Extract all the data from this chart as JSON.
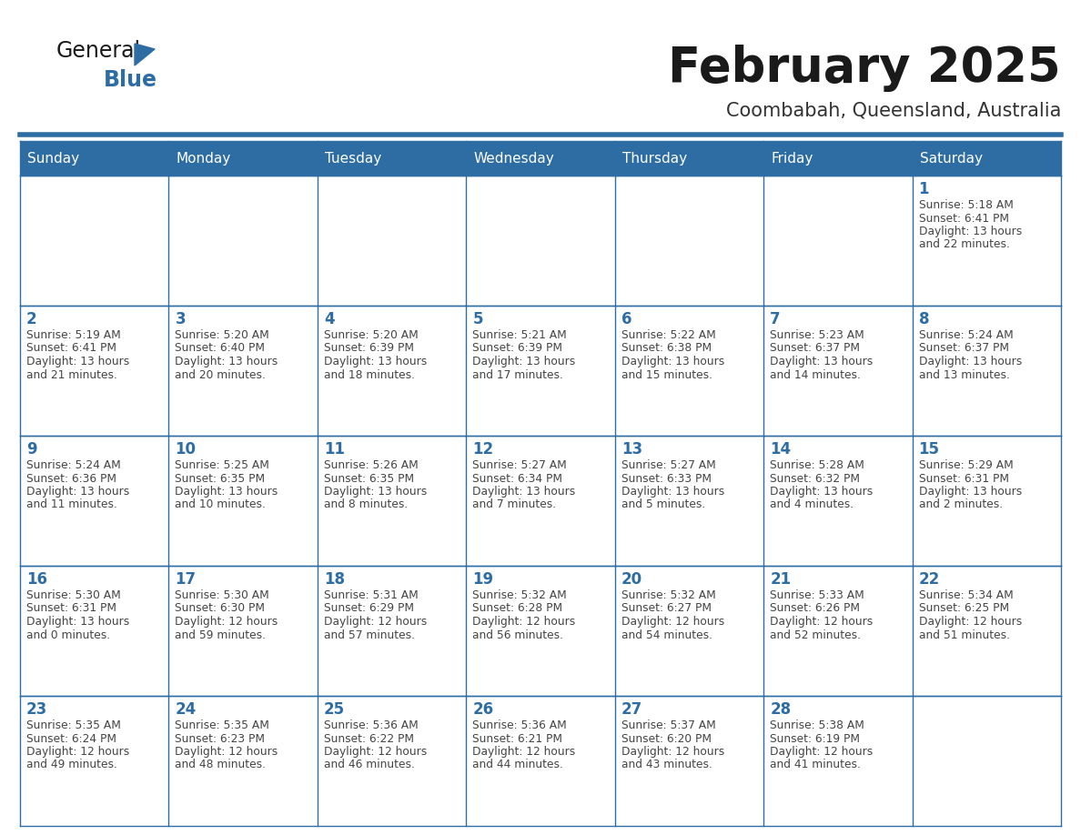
{
  "title": "February 2025",
  "subtitle": "Coombabah, Queensland, Australia",
  "days_of_week": [
    "Sunday",
    "Monday",
    "Tuesday",
    "Wednesday",
    "Thursday",
    "Friday",
    "Saturday"
  ],
  "header_bg": "#2E6DA4",
  "header_text_color": "#FFFFFF",
  "cell_bg": "#FFFFFF",
  "line_color": "#2E6DA4",
  "title_color": "#1a1a1a",
  "subtitle_color": "#333333",
  "day_number_color": "#2E6DA4",
  "detail_color": "#444444",
  "logo_general_color": "#1a1a1a",
  "logo_blue_color": "#2E6DA4",
  "weeks": [
    [
      null,
      null,
      null,
      null,
      null,
      null,
      1
    ],
    [
      2,
      3,
      4,
      5,
      6,
      7,
      8
    ],
    [
      9,
      10,
      11,
      12,
      13,
      14,
      15
    ],
    [
      16,
      17,
      18,
      19,
      20,
      21,
      22
    ],
    [
      23,
      24,
      25,
      26,
      27,
      28,
      null
    ]
  ],
  "cell_data": {
    "1": {
      "sunrise": "5:18 AM",
      "sunset": "6:41 PM",
      "daylight_h": "13 hours",
      "daylight_m": "and 22 minutes."
    },
    "2": {
      "sunrise": "5:19 AM",
      "sunset": "6:41 PM",
      "daylight_h": "13 hours",
      "daylight_m": "and 21 minutes."
    },
    "3": {
      "sunrise": "5:20 AM",
      "sunset": "6:40 PM",
      "daylight_h": "13 hours",
      "daylight_m": "and 20 minutes."
    },
    "4": {
      "sunrise": "5:20 AM",
      "sunset": "6:39 PM",
      "daylight_h": "13 hours",
      "daylight_m": "and 18 minutes."
    },
    "5": {
      "sunrise": "5:21 AM",
      "sunset": "6:39 PM",
      "daylight_h": "13 hours",
      "daylight_m": "and 17 minutes."
    },
    "6": {
      "sunrise": "5:22 AM",
      "sunset": "6:38 PM",
      "daylight_h": "13 hours",
      "daylight_m": "and 15 minutes."
    },
    "7": {
      "sunrise": "5:23 AM",
      "sunset": "6:37 PM",
      "daylight_h": "13 hours",
      "daylight_m": "and 14 minutes."
    },
    "8": {
      "sunrise": "5:24 AM",
      "sunset": "6:37 PM",
      "daylight_h": "13 hours",
      "daylight_m": "and 13 minutes."
    },
    "9": {
      "sunrise": "5:24 AM",
      "sunset": "6:36 PM",
      "daylight_h": "13 hours",
      "daylight_m": "and 11 minutes."
    },
    "10": {
      "sunrise": "5:25 AM",
      "sunset": "6:35 PM",
      "daylight_h": "13 hours",
      "daylight_m": "and 10 minutes."
    },
    "11": {
      "sunrise": "5:26 AM",
      "sunset": "6:35 PM",
      "daylight_h": "13 hours",
      "daylight_m": "and 8 minutes."
    },
    "12": {
      "sunrise": "5:27 AM",
      "sunset": "6:34 PM",
      "daylight_h": "13 hours",
      "daylight_m": "and 7 minutes."
    },
    "13": {
      "sunrise": "5:27 AM",
      "sunset": "6:33 PM",
      "daylight_h": "13 hours",
      "daylight_m": "and 5 minutes."
    },
    "14": {
      "sunrise": "5:28 AM",
      "sunset": "6:32 PM",
      "daylight_h": "13 hours",
      "daylight_m": "and 4 minutes."
    },
    "15": {
      "sunrise": "5:29 AM",
      "sunset": "6:31 PM",
      "daylight_h": "13 hours",
      "daylight_m": "and 2 minutes."
    },
    "16": {
      "sunrise": "5:30 AM",
      "sunset": "6:31 PM",
      "daylight_h": "13 hours",
      "daylight_m": "and 0 minutes."
    },
    "17": {
      "sunrise": "5:30 AM",
      "sunset": "6:30 PM",
      "daylight_h": "12 hours",
      "daylight_m": "and 59 minutes."
    },
    "18": {
      "sunrise": "5:31 AM",
      "sunset": "6:29 PM",
      "daylight_h": "12 hours",
      "daylight_m": "and 57 minutes."
    },
    "19": {
      "sunrise": "5:32 AM",
      "sunset": "6:28 PM",
      "daylight_h": "12 hours",
      "daylight_m": "and 56 minutes."
    },
    "20": {
      "sunrise": "5:32 AM",
      "sunset": "6:27 PM",
      "daylight_h": "12 hours",
      "daylight_m": "and 54 minutes."
    },
    "21": {
      "sunrise": "5:33 AM",
      "sunset": "6:26 PM",
      "daylight_h": "12 hours",
      "daylight_m": "and 52 minutes."
    },
    "22": {
      "sunrise": "5:34 AM",
      "sunset": "6:25 PM",
      "daylight_h": "12 hours",
      "daylight_m": "and 51 minutes."
    },
    "23": {
      "sunrise": "5:35 AM",
      "sunset": "6:24 PM",
      "daylight_h": "12 hours",
      "daylight_m": "and 49 minutes."
    },
    "24": {
      "sunrise": "5:35 AM",
      "sunset": "6:23 PM",
      "daylight_h": "12 hours",
      "daylight_m": "and 48 minutes."
    },
    "25": {
      "sunrise": "5:36 AM",
      "sunset": "6:22 PM",
      "daylight_h": "12 hours",
      "daylight_m": "and 46 minutes."
    },
    "26": {
      "sunrise": "5:36 AM",
      "sunset": "6:21 PM",
      "daylight_h": "12 hours",
      "daylight_m": "and 44 minutes."
    },
    "27": {
      "sunrise": "5:37 AM",
      "sunset": "6:20 PM",
      "daylight_h": "12 hours",
      "daylight_m": "and 43 minutes."
    },
    "28": {
      "sunrise": "5:38 AM",
      "sunset": "6:19 PM",
      "daylight_h": "12 hours",
      "daylight_m": "and 41 minutes."
    }
  }
}
